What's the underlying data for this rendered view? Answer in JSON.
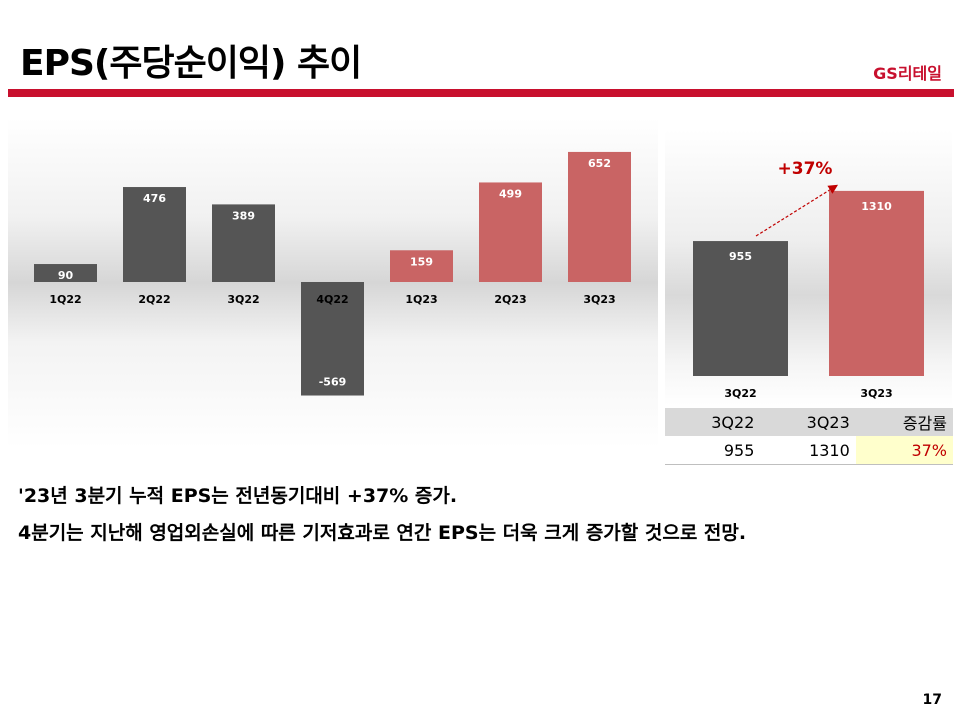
{
  "slide": {
    "title": "EPS(주당순이익) 추이",
    "brand": "GS리테일",
    "page_number": "17"
  },
  "colors": {
    "accent": "#c8102e",
    "bar_prev": "#555555",
    "bar_curr": "#c96464",
    "growth": "#c00000",
    "highlight": "#ffffcc"
  },
  "chart_data": [
    {
      "type": "bar",
      "categories": [
        "1Q22",
        "2Q22",
        "3Q22",
        "4Q22",
        "1Q23",
        "2Q23",
        "3Q23"
      ],
      "values": [
        90,
        476,
        389,
        -569,
        159,
        499,
        652
      ],
      "labels": [
        "90",
        "476",
        "389",
        "-569",
        "159",
        "499",
        "652"
      ],
      "colors": [
        "#555555",
        "#555555",
        "#555555",
        "#555555",
        "#c96464",
        "#c96464",
        "#c96464"
      ],
      "ylim": [
        -630,
        740
      ]
    },
    {
      "type": "bar",
      "categories": [
        "3Q22",
        "3Q23"
      ],
      "values": [
        955,
        1310
      ],
      "labels": [
        "955",
        "1310"
      ],
      "colors": [
        "#555555",
        "#c96464"
      ],
      "annotation": "+37%",
      "ylim": [
        0,
        1420
      ]
    }
  ],
  "table": {
    "headers": [
      "3Q22",
      "3Q23",
      "증감률"
    ],
    "values": [
      "955",
      "1310",
      "37%"
    ]
  },
  "notes": [
    "'23년 3분기 누적 EPS는 전년동기대비 +37% 증가.",
    "4분기는 지난해 영업외손실에 따른 기저효과로 연간 EPS는 더욱 크게 증가할 것으로 전망."
  ]
}
